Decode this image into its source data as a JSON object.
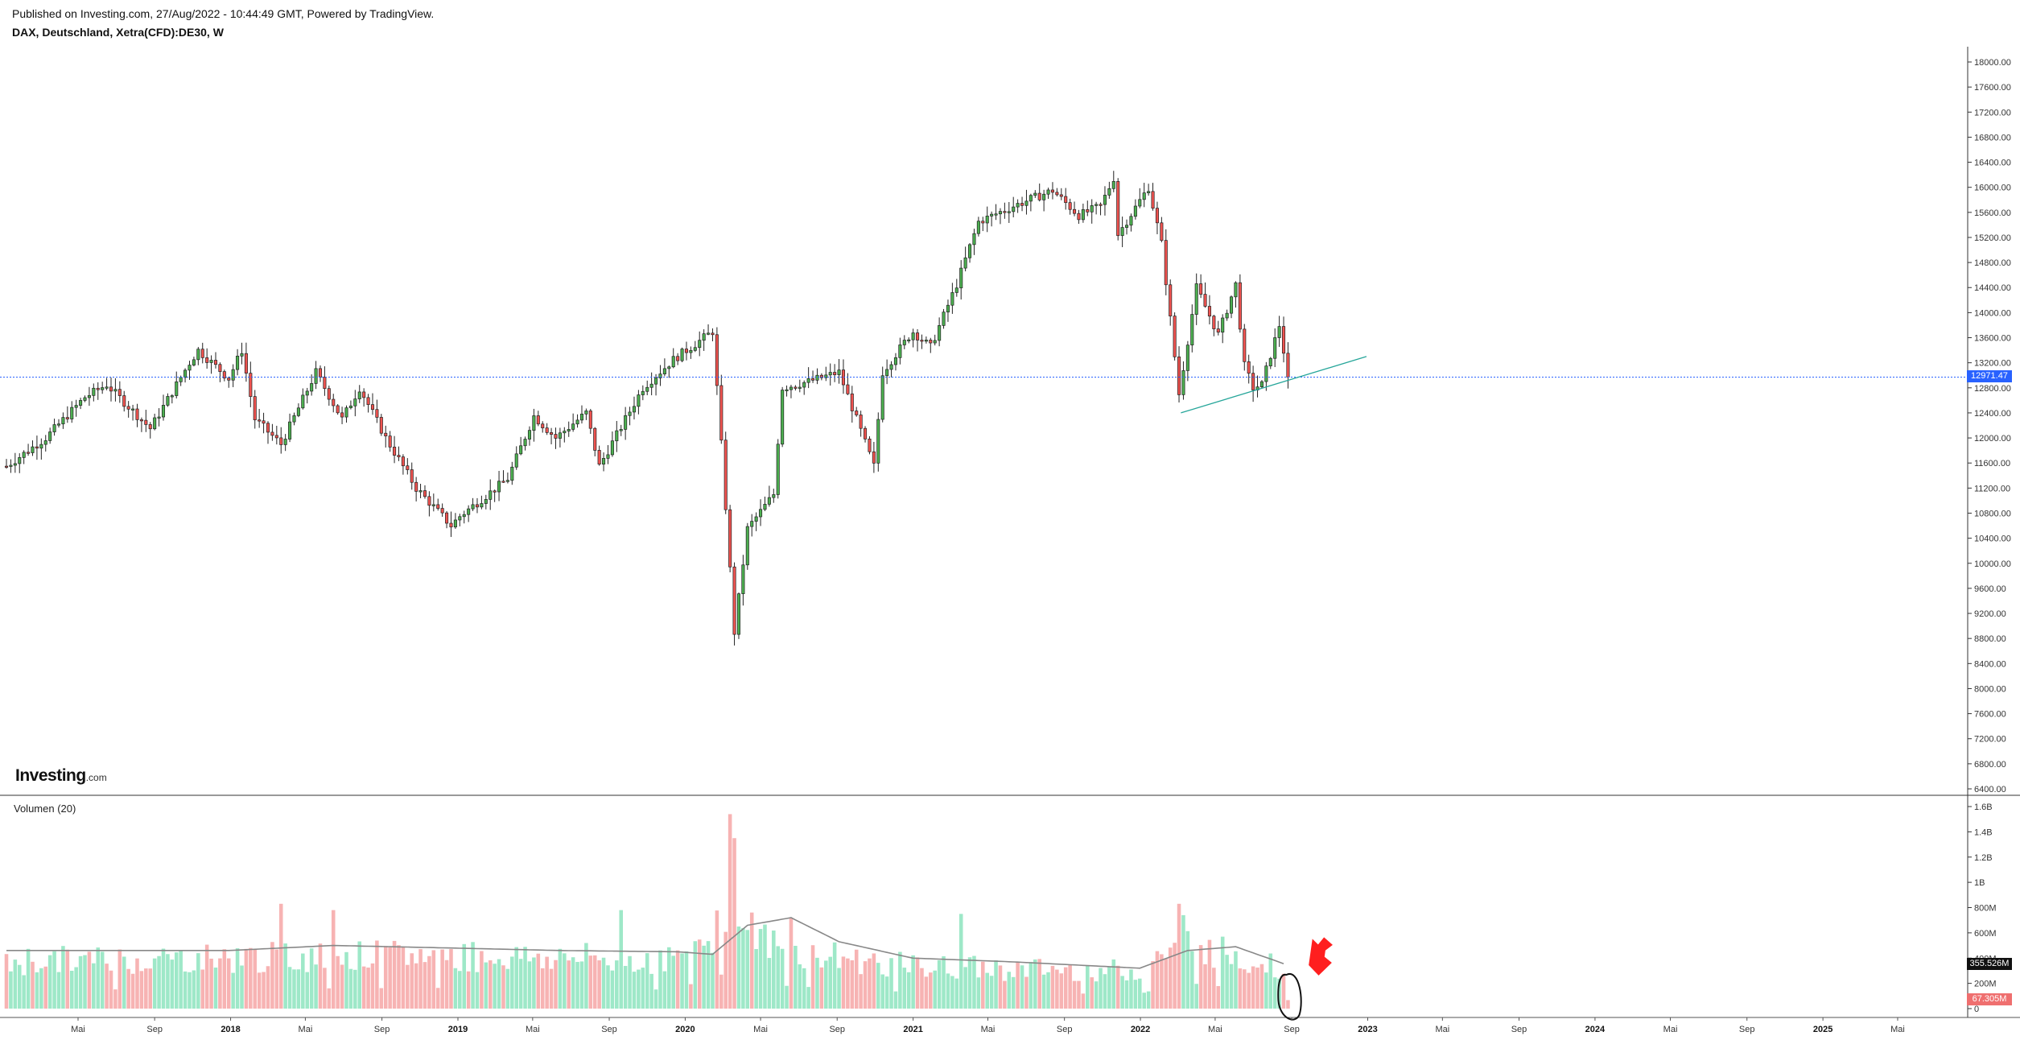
{
  "header": {
    "published": "Published on Investing.com, 27/Aug/2022 - 10:44:49 GMT, Powered by TradingView.",
    "symbol": "DAX, Deutschland, Xetra(CFD):DE30, W"
  },
  "logo": {
    "brand": "Investing",
    "domain": ".com"
  },
  "volume_title": "Volumen (20)",
  "badges": {
    "last_price": "12971.47",
    "volume_ma": "355.526M",
    "last_volume": "67.305M"
  },
  "colors": {
    "up": "#26a69a",
    "up_body": "#4caf50",
    "down": "#ef5350",
    "vol_up": "#9ee8c8",
    "vol_down": "#f7b3b3",
    "price_line": "#2962ff",
    "trendline": "#26a69a",
    "annotation_arrow": "#ff1f1f"
  },
  "chart_data": [
    {
      "type": "candlestick",
      "title": "DAX, Deutschland, Xetra(CFD):DE30, W",
      "timeframe": "weekly",
      "y_ticks": [
        "18000.00",
        "17600.00",
        "17200.00",
        "16800.00",
        "16400.00",
        "16000.00",
        "15600.00",
        "15200.00",
        "14800.00",
        "14400.00",
        "14000.00",
        "13600.00",
        "13200.00",
        "12800.00",
        "12400.00",
        "12000.00",
        "11600.00",
        "11200.00",
        "10800.00",
        "10400.00",
        "10000.00",
        "9600.00",
        "9200.00",
        "8800.00",
        "8400.00",
        "8000.00",
        "7600.00",
        "7200.00",
        "6800.00",
        "6400.00"
      ],
      "ylim": [
        6400,
        18000
      ],
      "x_ticks": [
        "Mai",
        "Sep",
        "2018",
        "Mai",
        "Sep",
        "2019",
        "Mai",
        "Sep",
        "2020",
        "Mai",
        "Sep",
        "2021",
        "Mai",
        "Sep",
        "2022",
        "Mai",
        "Sep",
        "2023",
        "Mai",
        "Sep",
        "2024",
        "Mai",
        "Sep",
        "2025",
        "Mai"
      ],
      "x_range": [
        "2017-01-06",
        "2025-08-15"
      ],
      "last_price": 12971.47,
      "trendline": {
        "from": [
          "2022-03-07",
          12400
        ],
        "to": [
          "2022-12-30",
          13300
        ]
      },
      "anchors": [
        [
          "2017-01-06",
          11550
        ],
        [
          "2017-03-10",
          12000
        ],
        [
          "2017-05-12",
          12650
        ],
        [
          "2017-06-16",
          12850
        ],
        [
          "2017-08-25",
          12150
        ],
        [
          "2017-10-27",
          13200
        ],
        [
          "2017-11-10",
          13400
        ],
        [
          "2017-12-29",
          12950
        ],
        [
          "2018-01-19",
          13400
        ],
        [
          "2018-02-09",
          12300
        ],
        [
          "2018-03-23",
          11900
        ],
        [
          "2018-05-18",
          13050
        ],
        [
          "2018-06-29",
          12300
        ],
        [
          "2018-07-27",
          12800
        ],
        [
          "2018-09-07",
          12000
        ],
        [
          "2018-10-26",
          11200
        ],
        [
          "2018-12-21",
          10600
        ],
        [
          "2019-01-04",
          10750
        ],
        [
          "2019-03-22",
          11350
        ],
        [
          "2019-05-03",
          12350
        ],
        [
          "2019-06-07",
          12000
        ],
        [
          "2019-07-26",
          12400
        ],
        [
          "2019-08-16",
          11550
        ],
        [
          "2019-10-25",
          12800
        ],
        [
          "2019-12-13",
          13250
        ],
        [
          "2020-01-17",
          13500
        ],
        [
          "2020-02-14",
          13700
        ],
        [
          "2020-02-28",
          11900
        ],
        [
          "2020-03-20",
          8900
        ],
        [
          "2020-04-10",
          10550
        ],
        [
          "2020-05-22",
          11100
        ],
        [
          "2020-06-05",
          12800
        ],
        [
          "2020-07-17",
          12900
        ],
        [
          "2020-09-04",
          13050
        ],
        [
          "2020-10-30",
          11550
        ],
        [
          "2020-11-13",
          13050
        ],
        [
          "2020-12-31",
          13700
        ],
        [
          "2021-01-29",
          13450
        ],
        [
          "2021-03-12",
          14450
        ],
        [
          "2021-04-16",
          15450
        ],
        [
          "2021-06-11",
          15700
        ],
        [
          "2021-08-13",
          15950
        ],
        [
          "2021-09-24",
          15550
        ],
        [
          "2021-10-29",
          15700
        ],
        [
          "2021-11-19",
          16150
        ],
        [
          "2021-11-26",
          15250
        ],
        [
          "2022-01-14",
          16000
        ],
        [
          "2022-02-04",
          15100
        ],
        [
          "2022-03-04",
          12700
        ],
        [
          "2022-04-01",
          14400
        ],
        [
          "2022-05-06",
          13650
        ],
        [
          "2022-06-03",
          14450
        ],
        [
          "2022-06-17",
          13150
        ],
        [
          "2022-07-01",
          12800
        ],
        [
          "2022-07-15",
          12850
        ],
        [
          "2022-08-12",
          13800
        ],
        [
          "2022-08-26",
          12971
        ]
      ]
    },
    {
      "type": "bar",
      "title": "Volumen (20)",
      "y_ticks": [
        "1.6B",
        "1.4B",
        "1.2B",
        "1B",
        "800M",
        "600M",
        "400M",
        "200M",
        "0"
      ],
      "ylim": [
        0,
        1600
      ],
      "unit": "M",
      "ma_period": 20,
      "ma_last": 355.526,
      "last_value": 67.305,
      "base_level": [
        [
          "2017-01-06",
          420
        ],
        [
          "2017-12-29",
          450
        ],
        [
          "2018-12-21",
          470
        ],
        [
          "2019-12-13",
          430
        ],
        [
          "2020-03-06",
          800
        ],
        [
          "2020-06-05",
          520
        ],
        [
          "2020-12-31",
          370
        ],
        [
          "2021-12-31",
          330
        ],
        [
          "2022-03-04",
          600
        ],
        [
          "2022-08-19",
          360
        ]
      ],
      "peaks": [
        [
          "2018-03-23",
          830
        ],
        [
          "2018-06-15",
          780
        ],
        [
          "2019-09-20",
          780
        ],
        [
          "2020-03-13",
          1540
        ],
        [
          "2020-03-20",
          1350
        ],
        [
          "2020-06-19",
          720
        ],
        [
          "2021-03-19",
          750
        ],
        [
          "2022-03-04",
          830
        ],
        [
          "2022-03-11",
          740
        ]
      ],
      "ma_anchors": [
        [
          "2017-01-06",
          460
        ],
        [
          "2017-12-29",
          460
        ],
        [
          "2018-06-15",
          500
        ],
        [
          "2018-12-21",
          480
        ],
        [
          "2019-06-14",
          460
        ],
        [
          "2019-12-20",
          450
        ],
        [
          "2020-02-14",
          430
        ],
        [
          "2020-04-10",
          660
        ],
        [
          "2020-06-19",
          720
        ],
        [
          "2020-09-04",
          530
        ],
        [
          "2020-12-31",
          400
        ],
        [
          "2021-06-11",
          370
        ],
        [
          "2021-12-31",
          320
        ],
        [
          "2022-03-18",
          460
        ],
        [
          "2022-06-03",
          490
        ],
        [
          "2022-08-19",
          356
        ]
      ]
    }
  ]
}
